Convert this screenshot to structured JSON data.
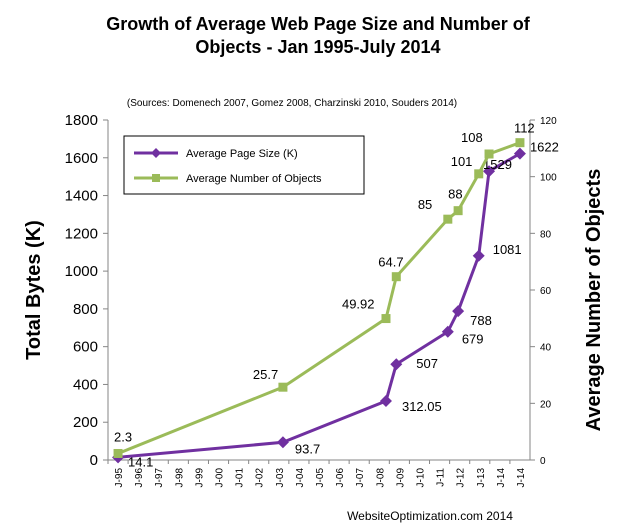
{
  "chart_data": {
    "type": "line",
    "title_line1": "Growth of Average Web Page Size and Number of",
    "title_line2": "Objects - Jan 1995-July 2014",
    "subtitle": "(Sources: Domenech 2007, Gomez 2008, Charzinski 2010, Souders 2014)",
    "ylabel_left": "Total Bytes (K)",
    "ylabel_right": "Average Number of Objects",
    "credit": "WebsiteOptimization.com 2014",
    "y_left_ticks": [
      "0",
      "200",
      "400",
      "600",
      "800",
      "1000",
      "1200",
      "1400",
      "1600",
      "1800"
    ],
    "y_right_ticks": [
      "0",
      "20",
      "40",
      "60",
      "80",
      "100",
      "120"
    ],
    "ylim_left": [
      0,
      1800
    ],
    "ylim_right": [
      0,
      120
    ],
    "x_categories": [
      "J-95",
      "J-96",
      "J-97",
      "J-98",
      "J-99",
      "J-00",
      "J-01",
      "J-02",
      "J-03",
      "J-04",
      "J-05",
      "J-06",
      "J-07",
      "J-08",
      "J-09",
      "J-10",
      "J-11",
      "J-12",
      "J-13",
      "J-14",
      "J-14"
    ],
    "legend_position": "top-left",
    "grid": false,
    "series": [
      {
        "name": "Average Page Size (K)",
        "axis": "left",
        "color": "#7030a0",
        "marker": "diamond",
        "points": [
          {
            "x": "Jan 1995",
            "y": 14.1,
            "label": "14.1"
          },
          {
            "x": "Jan 2003",
            "y": 93.7,
            "label": "93.7"
          },
          {
            "x": "Jan 2008",
            "y": 312.05,
            "label": "312.05"
          },
          {
            "x": "Jul 2008",
            "y": 507,
            "label": "507"
          },
          {
            "x": "Jan 2011",
            "y": 679,
            "label": "679"
          },
          {
            "x": "Jul 2011",
            "y": 788,
            "label": "788"
          },
          {
            "x": "Jul 2012",
            "y": 1081,
            "label": "1081"
          },
          {
            "x": "Jan 2013",
            "y": 1529,
            "label": "1529"
          },
          {
            "x": "Jul 2014",
            "y": 1622,
            "label": "1622"
          }
        ]
      },
      {
        "name": "Average Number of Objects",
        "axis": "right",
        "color": "#9bbb59",
        "marker": "square",
        "points": [
          {
            "x": "Jan 1995",
            "y": 2.3,
            "label": "2.3"
          },
          {
            "x": "Jan 2003",
            "y": 25.7,
            "label": "25.7"
          },
          {
            "x": "Jan 2008",
            "y": 49.92,
            "label": "49.92"
          },
          {
            "x": "Jul 2008",
            "y": 64.7,
            "label": "64.7"
          },
          {
            "x": "Jan 2011",
            "y": 85,
            "label": "85"
          },
          {
            "x": "Jul 2011",
            "y": 88,
            "label": "88"
          },
          {
            "x": "Jul 2012",
            "y": 101,
            "label": "101"
          },
          {
            "x": "Jan 2013",
            "y": 108,
            "label": "108"
          },
          {
            "x": "Jul 2014",
            "y": 112,
            "label": "112"
          }
        ]
      }
    ]
  }
}
